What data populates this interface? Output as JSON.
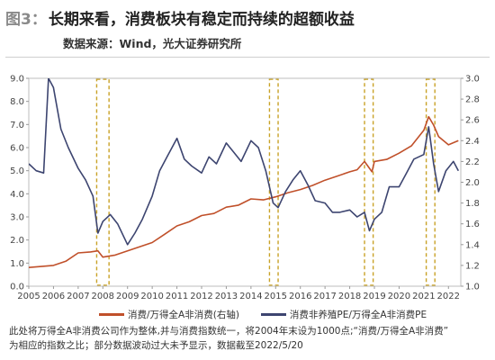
{
  "header": {
    "fig_label": "图3：",
    "title": "长期来看，消费板块有稳定而持续的超额收益",
    "source": "数据来源：Wind，光大证券研究所"
  },
  "legend": {
    "series1": "消费/万得全A非消费(右轴)",
    "series2": "消费非养殖PE/万得全A非消费PE"
  },
  "note": {
    "line1": "此处将万得全A非消费公司作为整体,并与消费指数统一，将2004年末设为1000点;“消费/万得全A非消费”",
    "line2": "为相应的指数之比；部分数据波动过大未予显示，数据截至2022/5/20"
  },
  "colors": {
    "series1": "#c0502a",
    "series2": "#3d4570",
    "highlight": "#c9a227"
  },
  "chart_data": {
    "type": "line",
    "title": "",
    "xlabel": "",
    "ylabel": "",
    "categories": [
      "2005",
      "2006",
      "2007",
      "2008",
      "2009",
      "2010",
      "2011",
      "2012",
      "2013",
      "2014",
      "2015",
      "2016",
      "2017",
      "2018",
      "2019",
      "2020",
      "2021",
      "2022"
    ],
    "left_ylim": [
      0,
      9
    ],
    "left_ticks": [
      "0.0",
      "1.0",
      "2.0",
      "3.0",
      "4.0",
      "5.0",
      "6.0",
      "7.0",
      "8.0",
      "9.0"
    ],
    "right_ylim": [
      1.0,
      3.0
    ],
    "right_ticks": [
      "1.0",
      "1.2",
      "1.4",
      "1.6",
      "1.8",
      "2.0",
      "2.2",
      "2.4",
      "2.6",
      "2.8",
      "3.0"
    ],
    "highlight_periods": [
      [
        2007.75,
        2008.25
      ],
      [
        2014.75,
        2015.1
      ],
      [
        2018.6,
        2018.95
      ],
      [
        2021.1,
        2021.45
      ]
    ],
    "series": [
      {
        "name": "消费/万得全A非消费(右轴)",
        "axis": "right",
        "x": [
          2005,
          2005.5,
          2006,
          2006.5,
          2007,
          2007.5,
          2007.8,
          2008,
          2008.5,
          2009,
          2009.5,
          2010,
          2010.5,
          2011,
          2011.5,
          2012,
          2012.5,
          2013,
          2013.5,
          2014,
          2014.5,
          2015,
          2015.5,
          2016,
          2016.5,
          2017,
          2017.5,
          2018,
          2018.3,
          2018.6,
          2018.9,
          2019,
          2019.5,
          2020,
          2020.5,
          2021,
          2021.2,
          2021.4,
          2021.6,
          2022,
          2022.4
        ],
        "y": [
          1.18,
          1.19,
          1.2,
          1.24,
          1.32,
          1.33,
          1.34,
          1.28,
          1.3,
          1.34,
          1.38,
          1.42,
          1.5,
          1.58,
          1.62,
          1.68,
          1.7,
          1.76,
          1.78,
          1.84,
          1.83,
          1.86,
          1.9,
          1.93,
          1.97,
          2.02,
          2.06,
          2.1,
          2.12,
          2.2,
          2.1,
          2.2,
          2.22,
          2.28,
          2.35,
          2.5,
          2.63,
          2.55,
          2.44,
          2.36,
          2.4
        ]
      },
      {
        "name": "消费非养殖PE/万得全A非消费PE",
        "axis": "left",
        "x": [
          2005,
          2005.3,
          2005.6,
          2005.8,
          2006,
          2006.3,
          2006.6,
          2007,
          2007.3,
          2007.6,
          2007.8,
          2008,
          2008.3,
          2008.6,
          2009,
          2009.3,
          2009.6,
          2010,
          2010.3,
          2010.6,
          2011,
          2011.3,
          2011.6,
          2012,
          2012.3,
          2012.6,
          2013,
          2013.3,
          2013.6,
          2014,
          2014.3,
          2014.6,
          2014.9,
          2015.1,
          2015.4,
          2015.7,
          2016,
          2016.3,
          2016.6,
          2017,
          2017.3,
          2017.6,
          2018,
          2018.3,
          2018.6,
          2018.8,
          2019,
          2019.3,
          2019.6,
          2020,
          2020.3,
          2020.6,
          2021,
          2021.2,
          2021.4,
          2021.6,
          2021.9,
          2022.2,
          2022.4
        ],
        "y": [
          5.3,
          5.0,
          4.9,
          9.0,
          8.6,
          6.8,
          6.0,
          5.1,
          4.6,
          3.9,
          2.3,
          2.8,
          3.1,
          2.7,
          1.8,
          2.3,
          2.9,
          3.9,
          5.0,
          5.6,
          6.4,
          5.5,
          5.2,
          4.9,
          5.6,
          5.3,
          6.2,
          5.8,
          5.4,
          6.3,
          6.0,
          5.0,
          3.6,
          3.4,
          4.1,
          4.6,
          5.0,
          4.4,
          3.7,
          3.6,
          3.2,
          3.2,
          3.3,
          3.0,
          3.2,
          2.4,
          2.9,
          3.2,
          4.3,
          4.3,
          4.9,
          5.5,
          5.7,
          6.9,
          5.3,
          4.1,
          5.0,
          5.4,
          5.0
        ]
      }
    ]
  }
}
